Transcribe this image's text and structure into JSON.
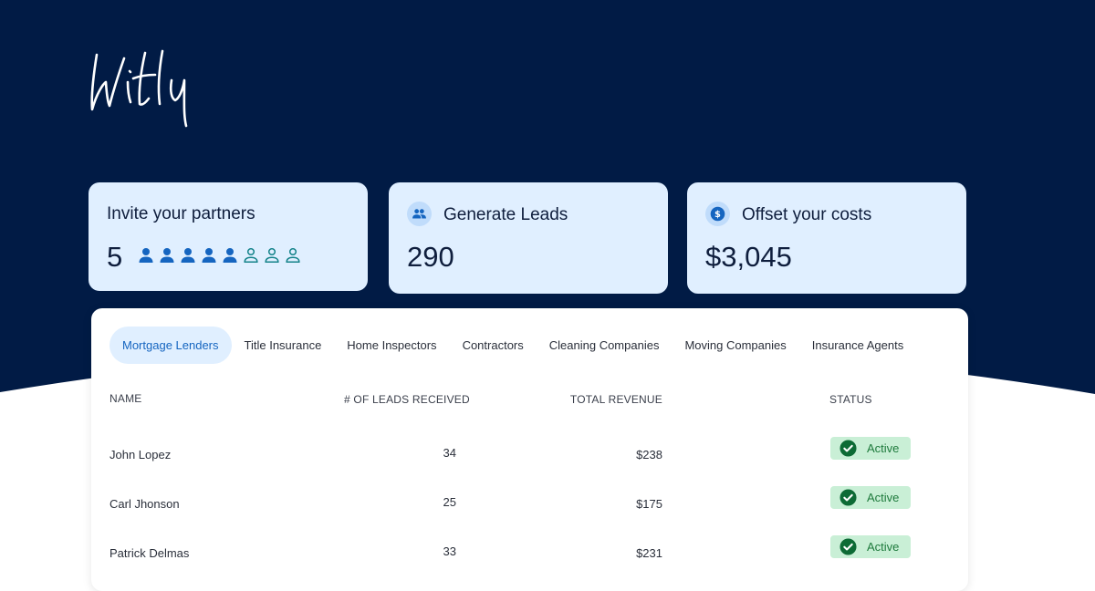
{
  "brand": {
    "logo_text": "Witly",
    "navy": "#011b45",
    "accent": "#1565c0"
  },
  "stats": {
    "partners": {
      "title": "Invite your partners",
      "value": "5",
      "filled_icons": 5,
      "outline_icons": 3,
      "icon": "person-icon"
    },
    "leads": {
      "title": "Generate Leads",
      "value": "290",
      "icon": "people-icon"
    },
    "costs": {
      "title": "Offset your costs",
      "value": "$3,045",
      "icon": "dollar-coin-icon"
    }
  },
  "tabs": [
    {
      "label": "Mortgage Lenders",
      "active": true
    },
    {
      "label": "Title Insurance",
      "active": false
    },
    {
      "label": "Home Inspectors",
      "active": false
    },
    {
      "label": "Contractors",
      "active": false
    },
    {
      "label": "Cleaning Companies",
      "active": false
    },
    {
      "label": "Moving Companies",
      "active": false
    },
    {
      "label": "Insurance Agents",
      "active": false
    }
  ],
  "table": {
    "headers": {
      "name": "NAME",
      "leads": "# OF LEADS RECEIVED",
      "revenue": "TOTAL REVENUE",
      "status": "STATUS"
    },
    "rows": [
      {
        "name": "John Lopez",
        "leads": "34",
        "revenue": "$238",
        "status": "Active"
      },
      {
        "name": "Carl Jhonson",
        "leads": "25",
        "revenue": "$175",
        "status": "Active"
      },
      {
        "name": "Patrick Delmas",
        "leads": "33",
        "revenue": "$231",
        "status": "Active"
      }
    ]
  }
}
